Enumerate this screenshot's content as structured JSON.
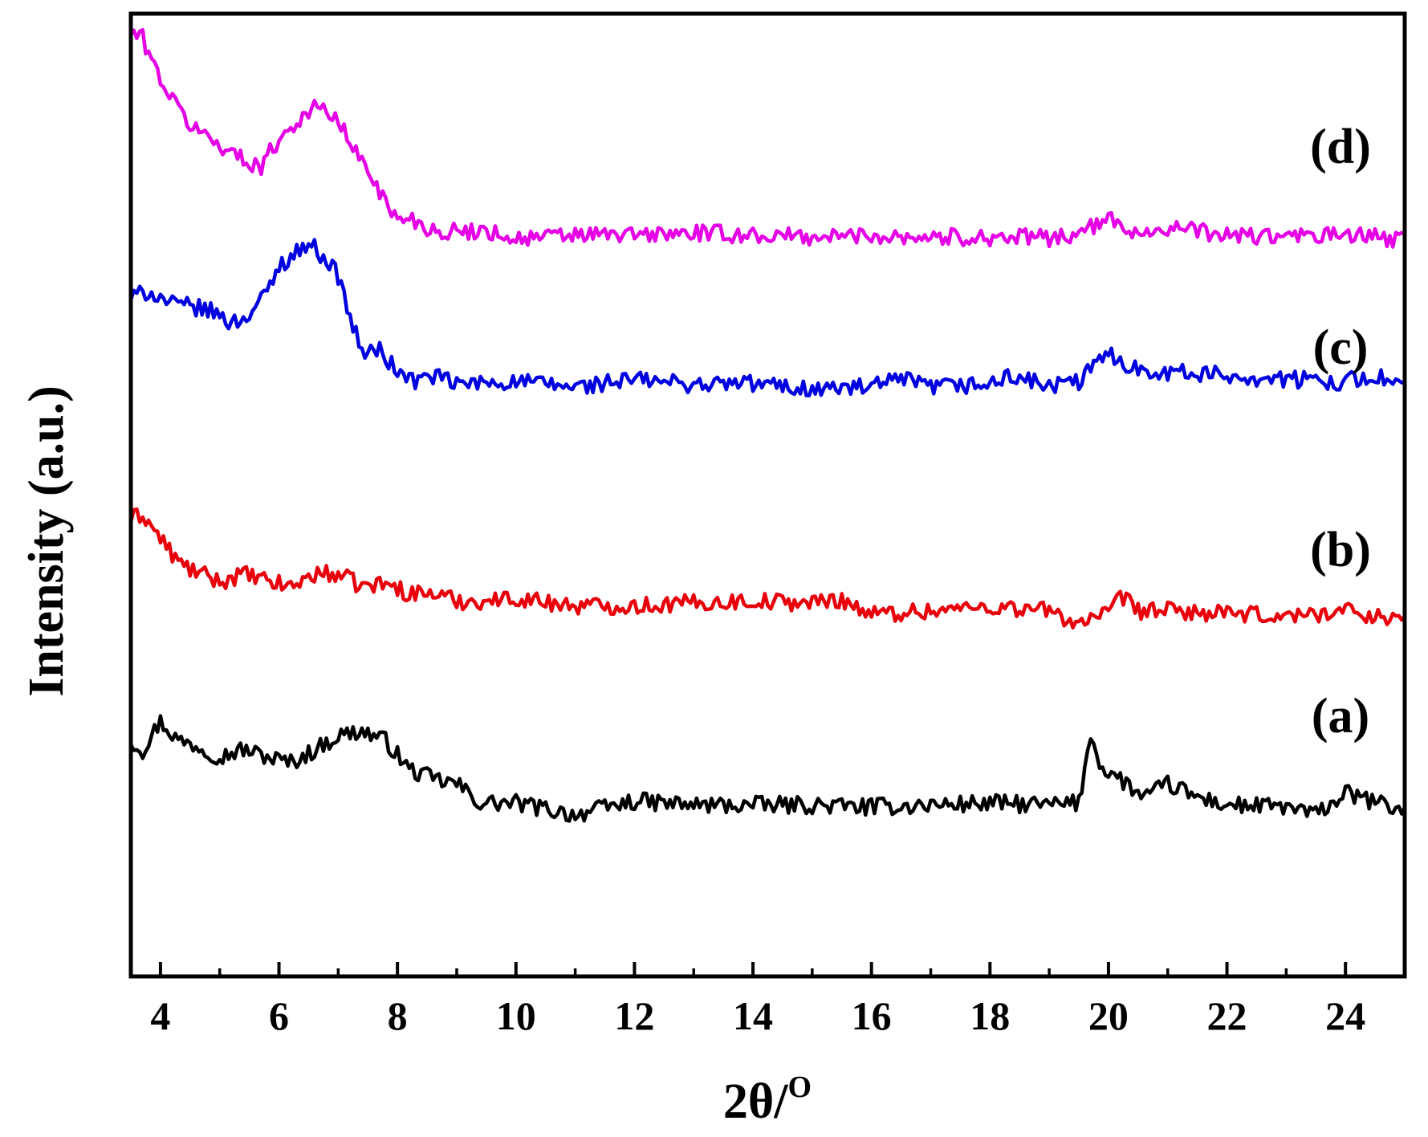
{
  "chart_data": {
    "type": "line",
    "title": "",
    "xlabel": "2θ/",
    "xlabel_superscript": "O",
    "ylabel": "Intensity (a.u.)",
    "xlim": [
      3.5,
      25
    ],
    "ylim": [
      0,
      1
    ],
    "x_ticks": [
      "4",
      "6",
      "8",
      "10",
      "12",
      "14",
      "16",
      "18",
      "20",
      "22",
      "24"
    ],
    "x_tick_values": [
      4,
      6,
      8,
      10,
      12,
      14,
      16,
      18,
      20,
      22,
      24
    ],
    "y_ticks": [],
    "grid": false,
    "legend": "none",
    "series": [
      {
        "label": "(a)",
        "color": "#000000",
        "x": [
          3.5,
          3.7,
          4.0,
          4.3,
          4.6,
          5.0,
          5.4,
          5.8,
          6.2,
          6.6,
          7.0,
          7.4,
          7.8,
          8.2,
          8.6,
          9.0,
          9.4,
          10.0,
          11.0,
          12.0,
          13.0,
          14.0,
          15.0,
          16.0,
          17.0,
          18.0,
          19.0,
          19.5,
          19.7,
          19.9,
          20.2,
          20.6,
          21.0,
          21.5,
          22.0,
          23.0,
          23.5,
          24.0,
          25.0
        ],
        "y": [
          0.245,
          0.235,
          0.265,
          0.245,
          0.24,
          0.228,
          0.236,
          0.228,
          0.222,
          0.235,
          0.25,
          0.255,
          0.245,
          0.215,
          0.205,
          0.2,
          0.18,
          0.18,
          0.168,
          0.182,
          0.178,
          0.178,
          0.178,
          0.176,
          0.178,
          0.18,
          0.178,
          0.18,
          0.252,
          0.215,
          0.205,
          0.185,
          0.2,
          0.186,
          0.178,
          0.176,
          0.168,
          0.19,
          0.172
        ]
      },
      {
        "label": "(b)",
        "color": "#e8000b",
        "x": [
          3.5,
          3.7,
          4.0,
          4.3,
          4.6,
          5.0,
          5.4,
          5.8,
          6.2,
          6.6,
          7.0,
          7.4,
          7.8,
          8.2,
          8.6,
          9.0,
          9.5,
          10.0,
          11.0,
          12.0,
          13.0,
          14.0,
          15.0,
          15.5,
          16.0,
          17.0,
          18.0,
          19.0,
          19.4,
          20.0,
          20.2,
          20.5,
          21.0,
          22.0,
          23.0,
          24.0,
          25.0
        ],
        "y": [
          0.475,
          0.48,
          0.455,
          0.43,
          0.42,
          0.41,
          0.418,
          0.41,
          0.405,
          0.418,
          0.418,
          0.405,
          0.408,
          0.398,
          0.398,
          0.39,
          0.39,
          0.393,
          0.385,
          0.385,
          0.388,
          0.39,
          0.388,
          0.392,
          0.376,
          0.38,
          0.384,
          0.38,
          0.368,
          0.375,
          0.395,
          0.38,
          0.38,
          0.376,
          0.374,
          0.38,
          0.37
        ]
      },
      {
        "label": "(c)",
        "color": "#0000e0",
        "x": [
          3.5,
          3.8,
          4.2,
          4.6,
          5.0,
          5.2,
          5.5,
          5.8,
          6.0,
          6.2,
          6.5,
          6.8,
          7.0,
          7.2,
          7.4,
          7.7,
          8.0,
          8.3,
          8.6,
          9.0,
          10.0,
          11.0,
          12.0,
          13.0,
          14.0,
          15.0,
          16.0,
          16.5,
          17.0,
          18.0,
          18.4,
          19.0,
          19.5,
          20.0,
          20.4,
          21.0,
          22.0,
          23.0,
          24.0,
          24.5,
          25.0
        ],
        "y": [
          0.705,
          0.712,
          0.698,
          0.695,
          0.688,
          0.678,
          0.688,
          0.71,
          0.738,
          0.748,
          0.762,
          0.745,
          0.728,
          0.685,
          0.648,
          0.65,
          0.628,
          0.618,
          0.624,
          0.615,
          0.618,
          0.612,
          0.62,
          0.615,
          0.616,
          0.61,
          0.612,
          0.62,
          0.612,
          0.615,
          0.624,
          0.612,
          0.618,
          0.648,
          0.632,
          0.628,
          0.624,
          0.62,
          0.618,
          0.624,
          0.612
        ]
      },
      {
        "label": "(d)",
        "color": "#e600e6",
        "x": [
          3.5,
          3.7,
          3.9,
          4.2,
          4.5,
          4.8,
          5.1,
          5.4,
          5.7,
          6.0,
          6.3,
          6.6,
          6.8,
          7.0,
          7.3,
          7.6,
          7.9,
          8.2,
          8.6,
          9.0,
          9.5,
          10.0,
          11.0,
          12.0,
          13.0,
          14.0,
          15.0,
          16.0,
          17.0,
          18.0,
          19.0,
          19.5,
          20.0,
          20.3,
          20.6,
          21.0,
          22.0,
          23.0,
          24.0,
          25.0
        ],
        "y": [
          0.98,
          0.975,
          0.945,
          0.91,
          0.885,
          0.872,
          0.86,
          0.848,
          0.842,
          0.87,
          0.888,
          0.902,
          0.9,
          0.888,
          0.855,
          0.83,
          0.79,
          0.788,
          0.775,
          0.773,
          0.775,
          0.766,
          0.77,
          0.77,
          0.772,
          0.77,
          0.768,
          0.77,
          0.768,
          0.768,
          0.767,
          0.772,
          0.786,
          0.778,
          0.772,
          0.778,
          0.77,
          0.768,
          0.77,
          0.765
        ]
      }
    ]
  }
}
